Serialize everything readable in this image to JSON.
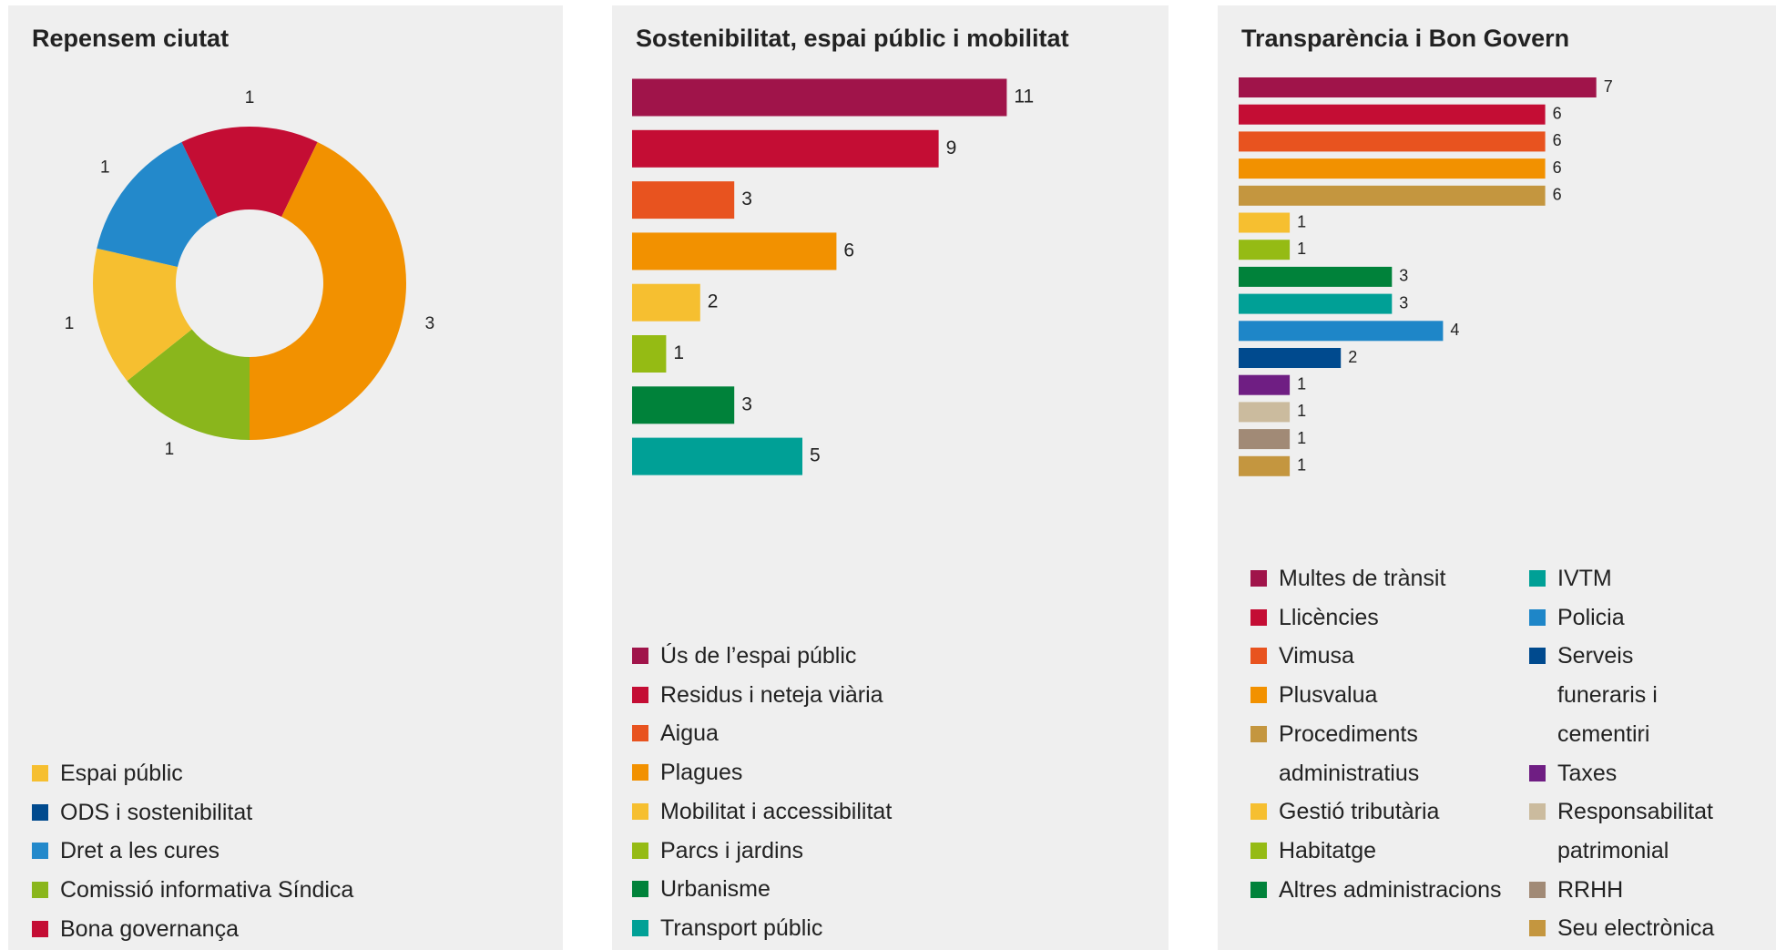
{
  "chart_data": [
    {
      "type": "donut",
      "title": "Repensem ciutat",
      "values": [
        1,
        3,
        1,
        1,
        1
      ],
      "colors": [
        "#c40d34",
        "#f29100",
        "#8ab61c",
        "#f6bf30",
        "#2389cb"
      ],
      "legend": [
        {
          "name": "Espai públic",
          "color": "#f6bf30"
        },
        {
          "name": "ODS i sostenibilitat",
          "color": "#004a8e"
        },
        {
          "name": "Dret a les cures",
          "color": "#2389cb"
        },
        {
          "name": "Comissió informativa Síndica",
          "color": "#8ab61c"
        },
        {
          "name": "Bona governança",
          "color": "#c40d34"
        }
      ]
    },
    {
      "type": "bar",
      "title": "Sostenibilitat, espai públic i mobilitat",
      "categories": [
        "Ús de l’espai públic",
        "Residus i neteja viària",
        "Aigua",
        "Plagues",
        "Mobilitat i accessibilitat",
        "Parcs i jardins",
        "Urbanisme",
        "Transport públic"
      ],
      "values": [
        11,
        9,
        3,
        6,
        2,
        1,
        3,
        5
      ],
      "colors": [
        "#a0144a",
        "#c40d34",
        "#e8531f",
        "#f29100",
        "#f6bf30",
        "#95bb14",
        "#00823a",
        "#00a096"
      ]
    },
    {
      "type": "bar",
      "title": "Transparència i Bon Govern",
      "categories": [
        "Multes de trànsit",
        "Llicències",
        "Vimusa",
        "Plusvalua",
        "Procediments administratius",
        "Gestió tributària",
        "Habitatge",
        "Altres administracions",
        "IVTM",
        "Policia",
        "Serveis funeraris i cementiri",
        "Taxes",
        "Responsabilitat patrimonial",
        "RRHH",
        "Seu electrònica"
      ],
      "values": [
        7,
        6,
        6,
        6,
        6,
        1,
        1,
        3,
        3,
        4,
        2,
        1,
        1,
        1,
        1
      ],
      "colors": [
        "#a0144a",
        "#c40d34",
        "#e8531f",
        "#f29100",
        "#c4963f",
        "#f6bf30",
        "#95bb14",
        "#00823a",
        "#00a096",
        "#1e86c8",
        "#004a8e",
        "#6f1e83",
        "#cbbb9e",
        "#a18a76",
        "#c4963f"
      ]
    }
  ]
}
